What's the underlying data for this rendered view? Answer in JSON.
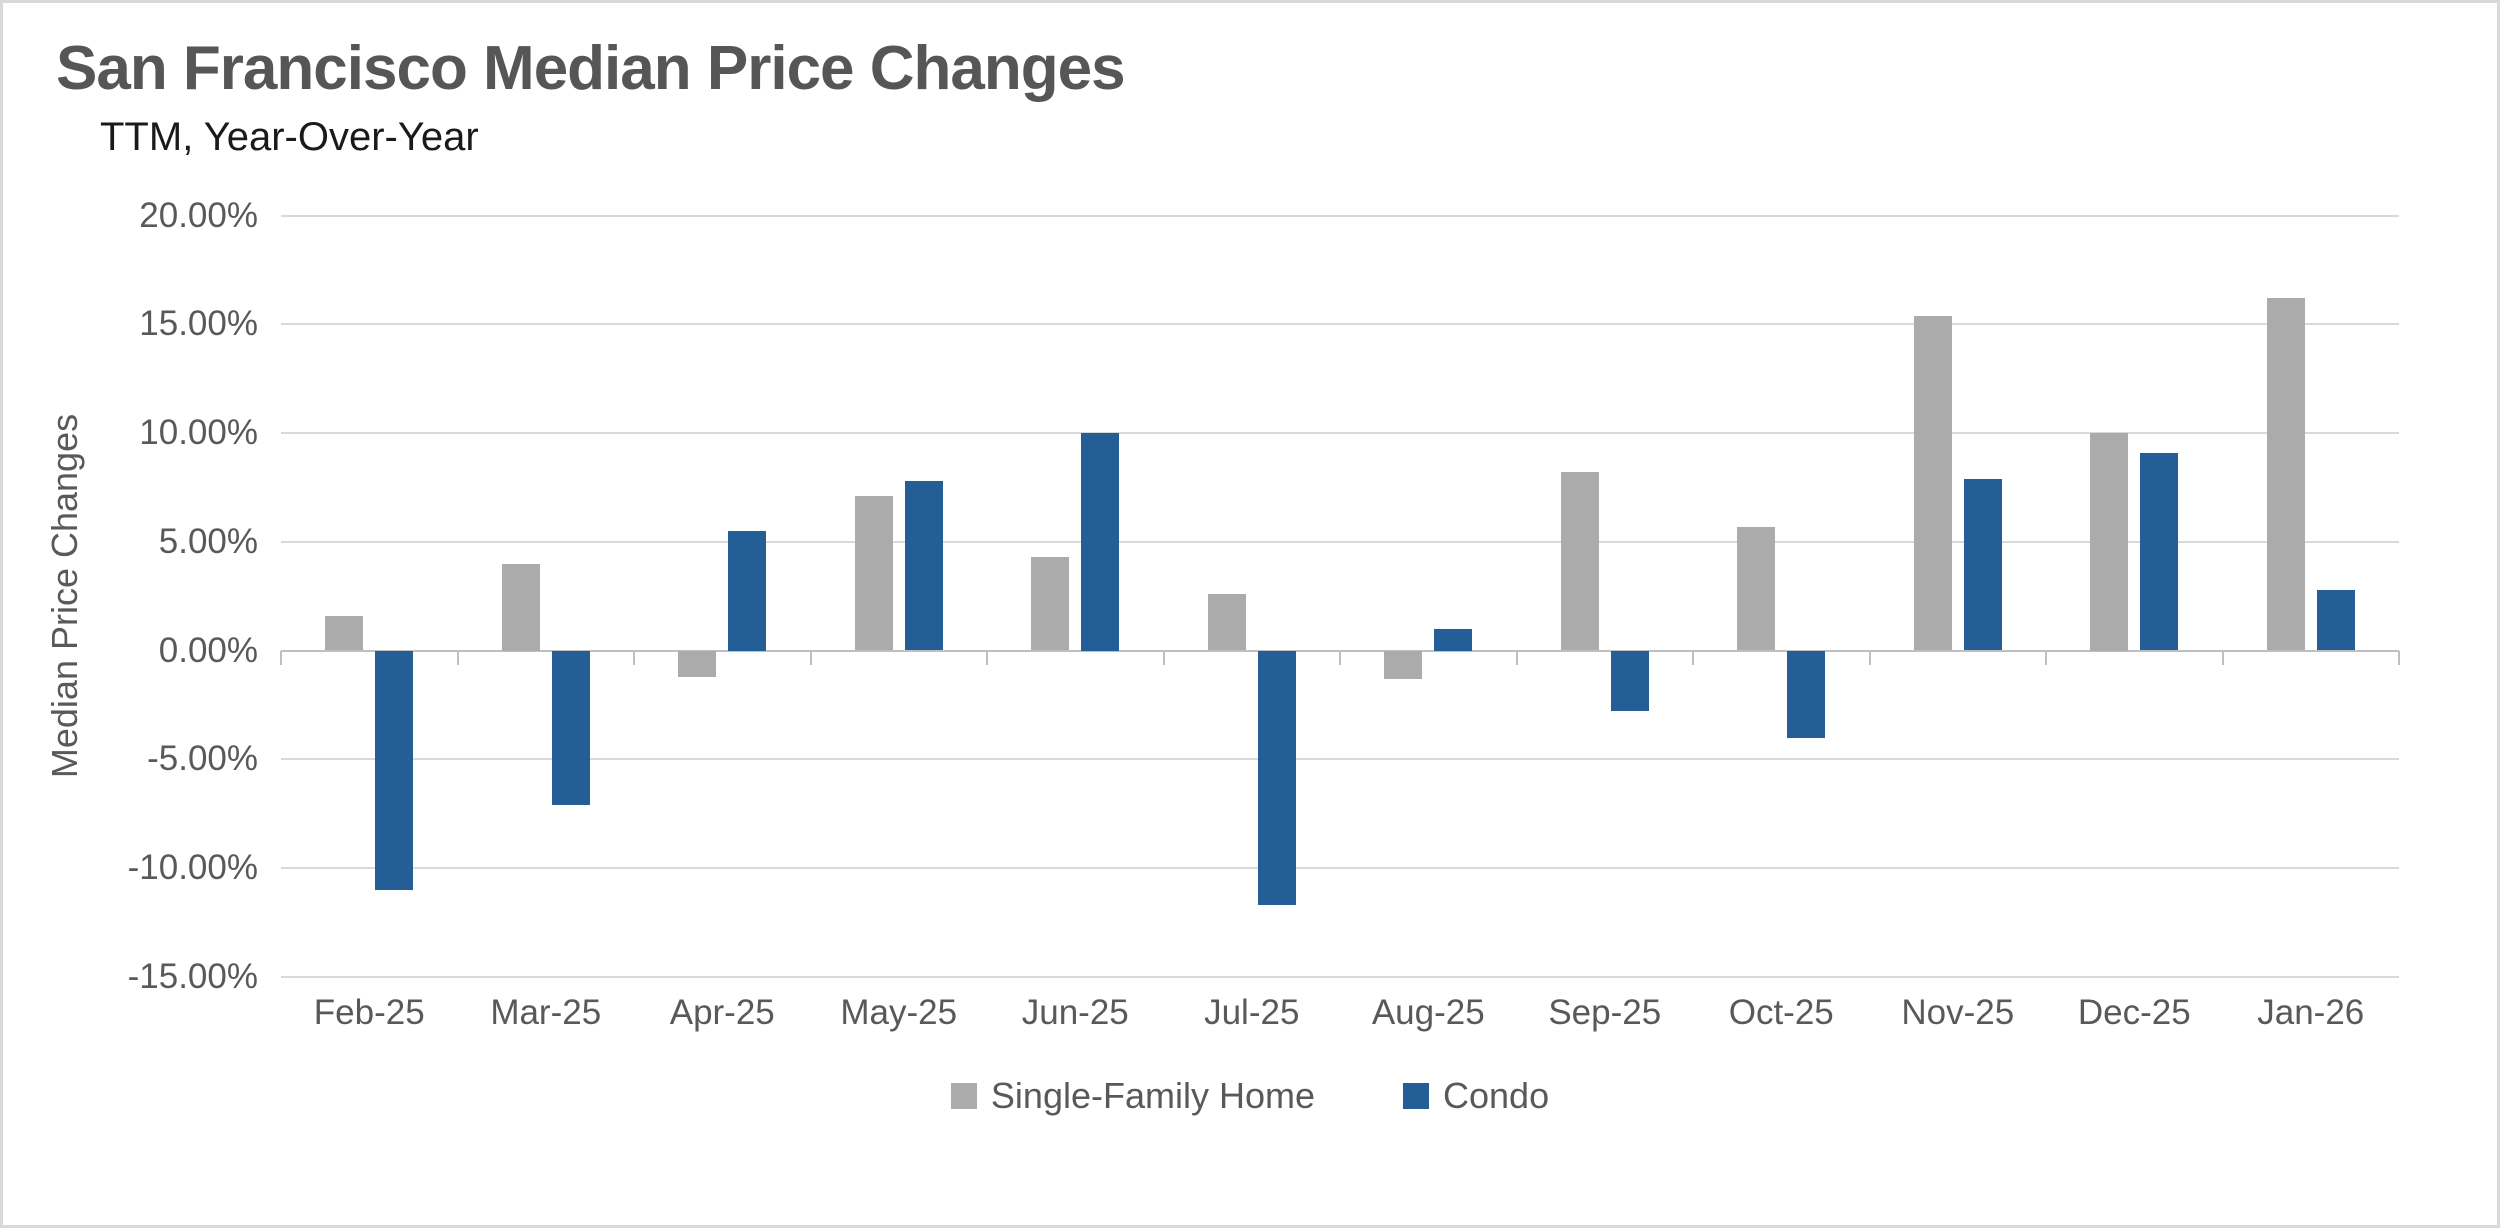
{
  "header": {
    "title": "San Francisco Median Price Changes",
    "subtitle": "TTM, Year-Over-Year"
  },
  "chart_data": {
    "type": "bar",
    "title": "San Francisco Median Price Changes",
    "subtitle": "TTM, Year-Over-Year",
    "xlabel": "",
    "ylabel": "Median Price Changes",
    "ylim": [
      -15,
      20
    ],
    "ytick_step": 5,
    "ytick_labels": [
      "20.00%",
      "15.00%",
      "10.00%",
      "5.00%",
      "0.00%",
      "-5.00%",
      "-10.00%",
      "-15.00%"
    ],
    "grid": true,
    "legend_position": "bottom",
    "value_unit": "percent",
    "categories": [
      "Feb-25",
      "Mar-25",
      "Apr-25",
      "May-25",
      "Jun-25",
      "Jul-25",
      "Aug-25",
      "Sep-25",
      "Oct-25",
      "Nov-25",
      "Dec-25",
      "Jan-26"
    ],
    "series": [
      {
        "name": "Single-Family Home",
        "color": "#ABABAB",
        "values": [
          1.6,
          4.0,
          -1.2,
          7.1,
          4.3,
          2.6,
          -1.3,
          8.2,
          5.7,
          15.4,
          10.0,
          16.2
        ]
      },
      {
        "name": "Condo",
        "color": "#235E96",
        "values": [
          -11.0,
          -7.1,
          5.5,
          7.8,
          10.0,
          -11.7,
          1.0,
          -2.8,
          -4.0,
          7.9,
          9.1,
          2.8
        ]
      }
    ]
  },
  "colors": {
    "background": "#FFFFFF",
    "border": "#D9D9D9",
    "gridline": "#D9D9D9",
    "axis": "#BFBFBF",
    "labels": "#595959",
    "title": "#565656",
    "subtitle": "#1A1A1A",
    "series_single_family_home": "#ABABAB",
    "series_condo": "#235E96"
  }
}
